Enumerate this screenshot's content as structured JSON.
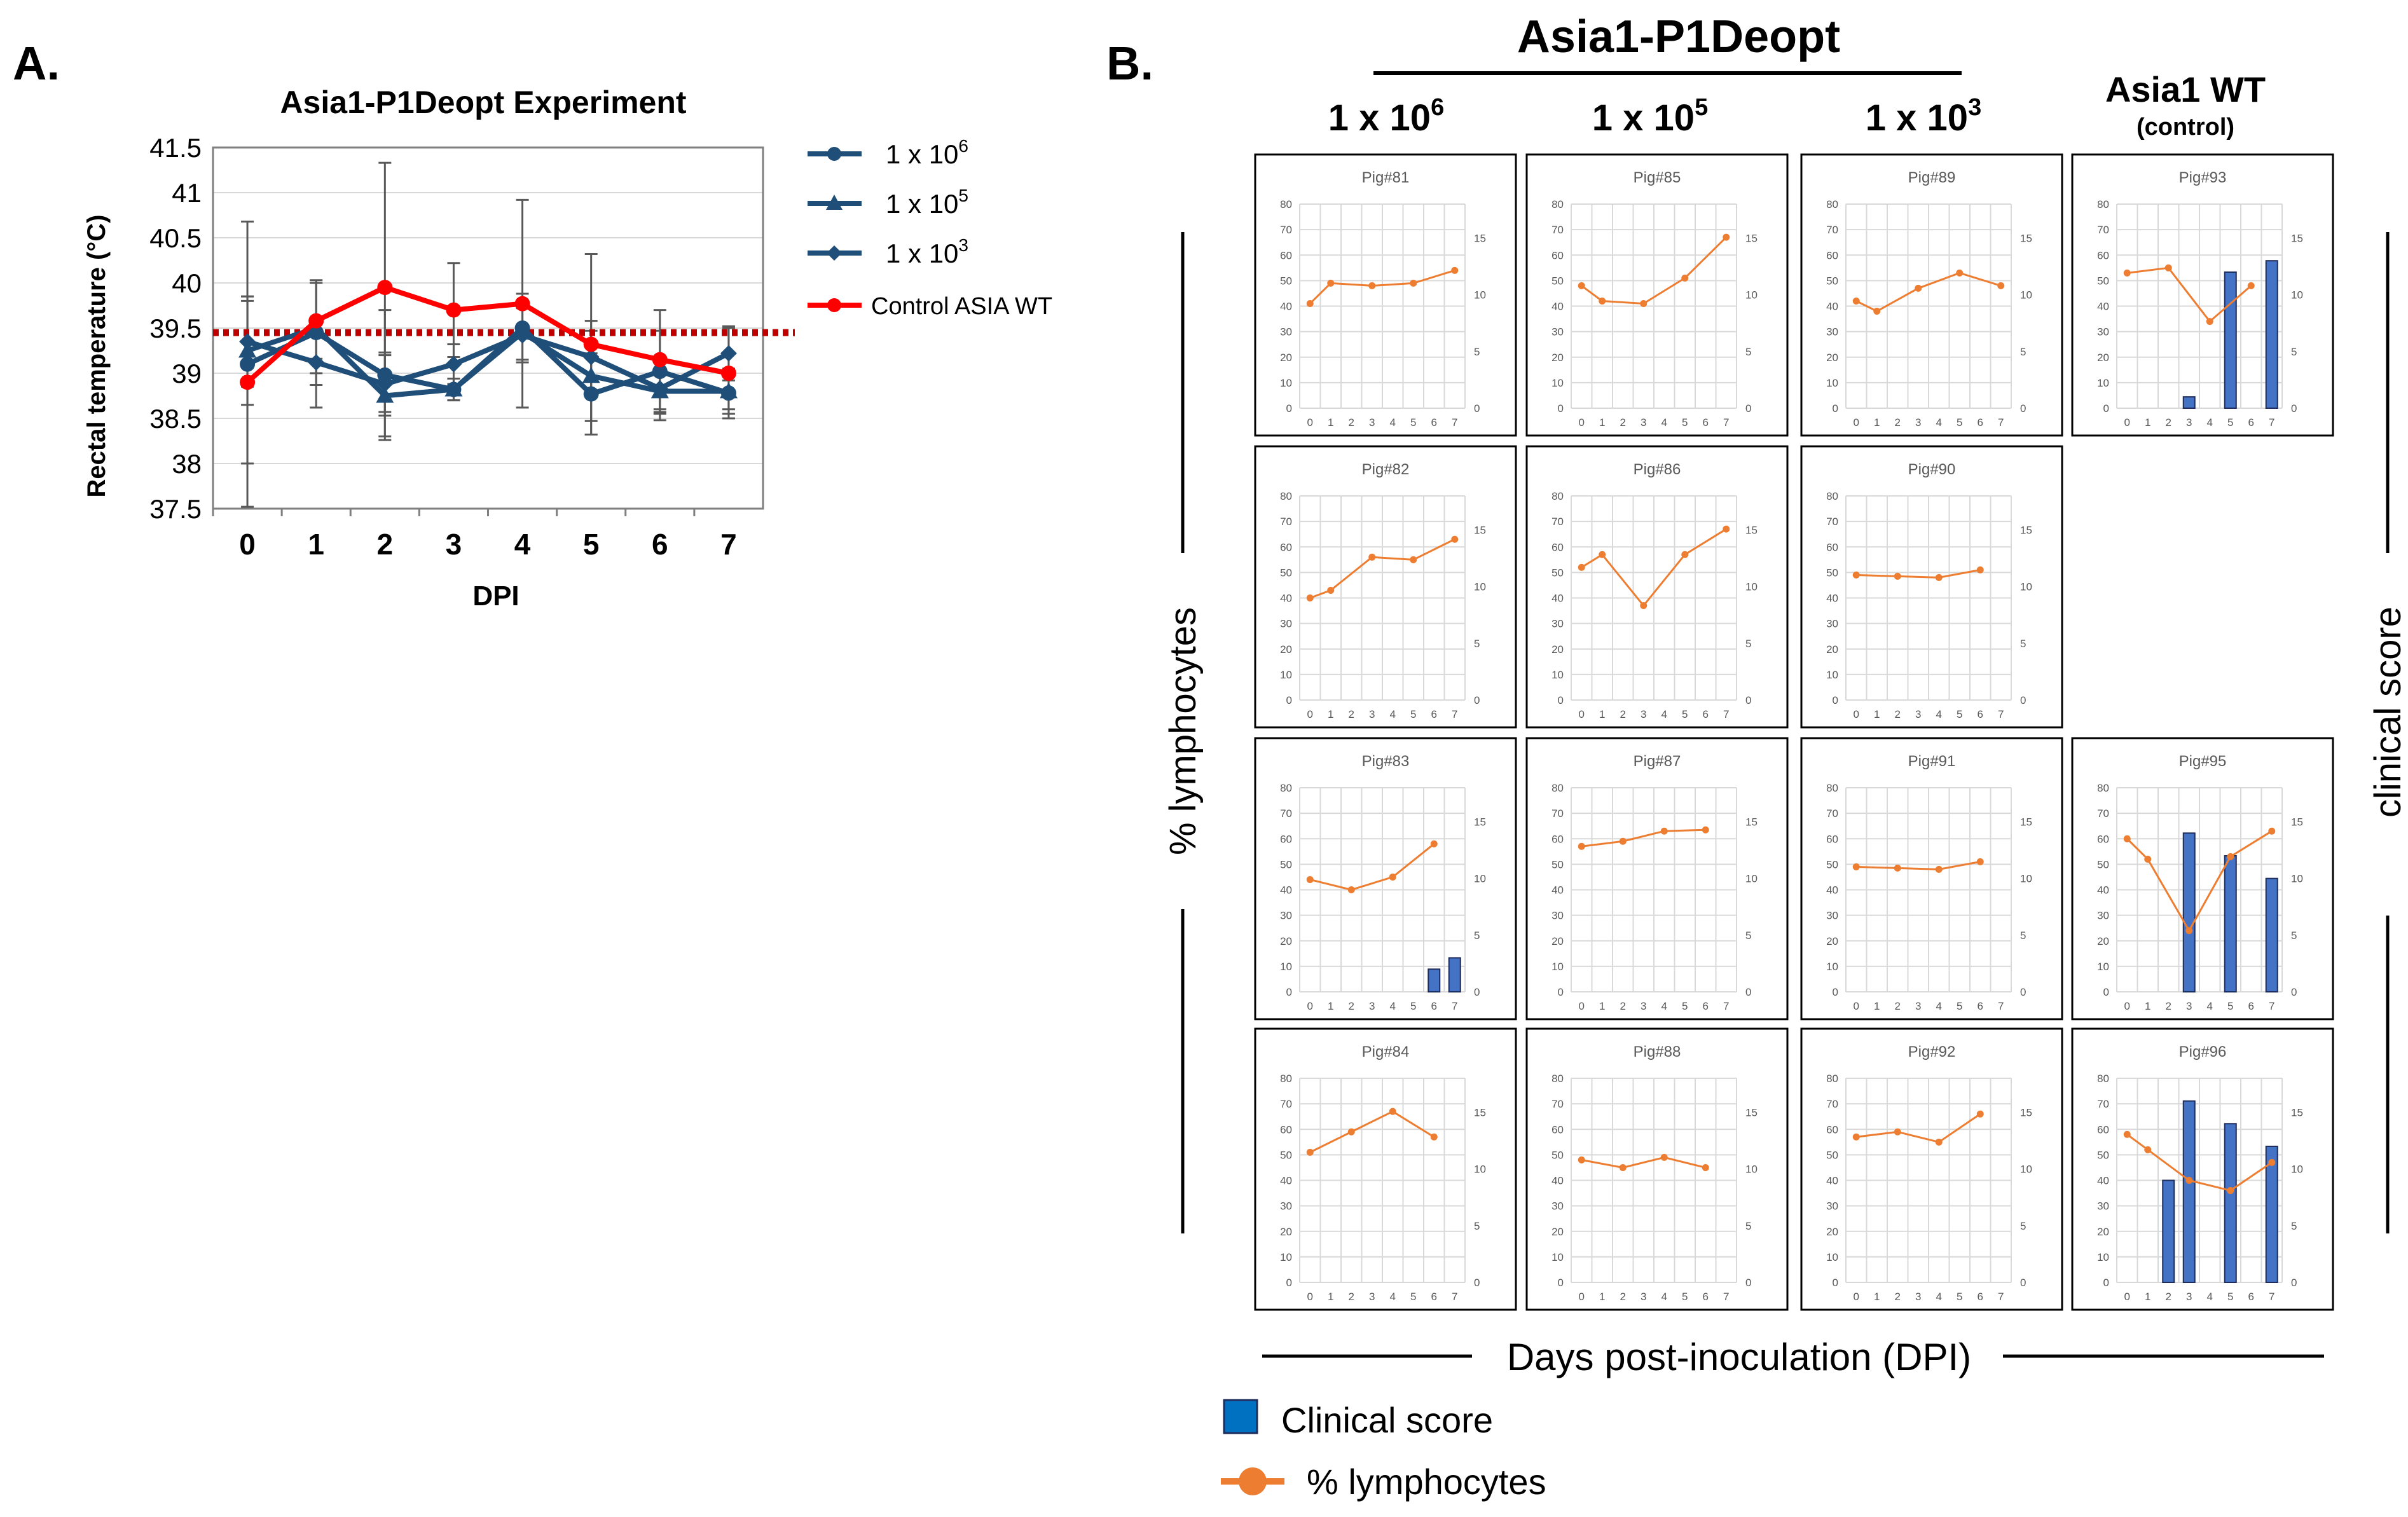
{
  "panel_a": {
    "label": "A.",
    "legend": {
      "e6": {
        "base": "1 x 10",
        "exp": "6"
      },
      "e5": {
        "base": "1 x 10",
        "exp": "5"
      },
      "e3": {
        "base": "1 x 10",
        "exp": "3"
      },
      "control": "Control ASIA WT"
    }
  },
  "panel_b": {
    "label": "B.",
    "group_title": "Asia1-P1Deopt",
    "columns": [
      {
        "base": "1 x 10",
        "exp": "6"
      },
      {
        "base": "1 x 10",
        "exp": "5"
      },
      {
        "base": "1 x 10",
        "exp": "3"
      },
      {
        "title": "Asia1 WT",
        "subtitle": "(control)"
      }
    ],
    "left_axis_label": "% lymphocytes",
    "right_axis_label": "clinical score",
    "bottom_axis_label": "Days post-inoculation (DPI)",
    "legend": {
      "bar": "Clinical score",
      "line": "% lymphocytes"
    }
  },
  "colors": {
    "navy": "#1f4e79",
    "red": "#ff0000",
    "dotted": "#c00000",
    "orange": "#ed7d31",
    "bar": "#4472c4",
    "bar_edge": "#1f2d5c",
    "grid": "#d9d9d9",
    "tick": "#595959"
  },
  "chart_data": [
    {
      "type": "line",
      "title": "Asia1-P1Deopt Experiment",
      "xlabel": "DPI",
      "ylabel": "Rectal temperature (°C)",
      "x": [
        0,
        1,
        2,
        3,
        4,
        5,
        6,
        7
      ],
      "ylim": [
        37.5,
        41.5
      ],
      "yticks": [
        "37.5",
        "38",
        "38.5",
        "39",
        "39.5",
        "40",
        "40.5",
        "41",
        "41.5"
      ],
      "threshold": 39.45,
      "series": [
        {
          "name": "1 x 10^6",
          "marker": "circle",
          "values": [
            39.1,
            39.45,
            38.98,
            38.82,
            39.5,
            38.77,
            39.02,
            38.78
          ],
          "err": [
            1.58,
            0.58,
            0.72,
            0.12,
            0.38,
            0.45,
            0.45,
            0.18
          ]
        },
        {
          "name": "1 x 10^5",
          "marker": "triangle",
          "values": [
            39.25,
            39.5,
            38.75,
            38.82,
            39.45,
            38.97,
            38.8,
            38.8
          ],
          "err": [
            0.6,
            0.5,
            0.45,
            0.12,
            0.3,
            0.5,
            0.25,
            0.25
          ]
        },
        {
          "name": "1 x 10^3",
          "marker": "diamond",
          "values": [
            39.35,
            39.12,
            38.88,
            39.1,
            39.42,
            39.18,
            38.83,
            39.22
          ],
          "err": [
            0.5,
            0.5,
            0.35,
            0.22,
            0.3,
            0.4,
            0.35,
            0.3
          ]
        },
        {
          "name": "Control ASIA WT",
          "marker": "circle",
          "values": [
            38.9,
            39.58,
            39.95,
            39.7,
            39.77,
            39.32,
            39.15,
            39.0
          ],
          "err": [
            0.9,
            0.42,
            1.38,
            0.52,
            1.15,
            1.0,
            0.55,
            0.5
          ]
        }
      ]
    },
    {
      "type": "small-multiples",
      "x": [
        0,
        1,
        2,
        3,
        4,
        5,
        6,
        7
      ],
      "left_ylim": [
        0,
        80
      ],
      "left_ticks": [
        "0",
        "10",
        "20",
        "30",
        "40",
        "50",
        "60",
        "70",
        "80"
      ],
      "right_ylim": [
        0,
        18
      ],
      "right_ticks": [
        "0",
        "5",
        "10",
        "15"
      ],
      "series_types": {
        "lymph": "line",
        "score": "bar"
      },
      "panels": [
        {
          "title": "Pig#81",
          "row": 0,
          "col": 0,
          "lymph": [
            [
              0,
              41
            ],
            [
              1,
              49
            ],
            [
              3,
              48
            ],
            [
              5,
              49
            ],
            [
              7,
              54
            ]
          ],
          "score": []
        },
        {
          "title": "Pig#85",
          "row": 0,
          "col": 1,
          "lymph": [
            [
              0,
              48
            ],
            [
              1,
              42
            ],
            [
              3,
              41
            ],
            [
              5,
              51
            ],
            [
              7,
              67
            ]
          ],
          "score": []
        },
        {
          "title": "Pig#89",
          "row": 0,
          "col": 2,
          "lymph": [
            [
              0,
              42
            ],
            [
              1,
              38
            ],
            [
              3,
              47
            ],
            [
              5,
              53
            ],
            [
              7,
              48
            ]
          ],
          "score": []
        },
        {
          "title": "Pig#93",
          "row": 0,
          "col": 3,
          "lymph": [
            [
              0,
              53
            ],
            [
              2,
              55
            ],
            [
              4,
              34
            ],
            [
              6,
              48
            ]
          ],
          "score": [
            [
              3,
              1
            ],
            [
              5,
              12
            ],
            [
              7,
              13
            ]
          ]
        },
        {
          "title": "Pig#82",
          "row": 1,
          "col": 0,
          "lymph": [
            [
              0,
              40
            ],
            [
              1,
              43
            ],
            [
              3,
              56
            ],
            [
              5,
              55
            ],
            [
              7,
              63
            ]
          ],
          "score": []
        },
        {
          "title": "Pig#86",
          "row": 1,
          "col": 1,
          "lymph": [
            [
              0,
              52
            ],
            [
              1,
              57
            ],
            [
              3,
              37
            ],
            [
              5,
              57
            ],
            [
              7,
              67
            ]
          ],
          "score": []
        },
        {
          "title": "Pig#90",
          "row": 1,
          "col": 2,
          "lymph": [
            [
              0,
              49
            ],
            [
              2,
              48.5
            ],
            [
              4,
              48
            ],
            [
              6,
              51
            ]
          ],
          "score": []
        },
        {
          "title": "Pig#83",
          "row": 2,
          "col": 0,
          "lymph": [
            [
              0,
              44
            ],
            [
              2,
              40
            ],
            [
              4,
              45
            ],
            [
              6,
              58
            ]
          ],
          "score": [
            [
              6,
              2
            ],
            [
              7,
              3
            ]
          ]
        },
        {
          "title": "Pig#87",
          "row": 2,
          "col": 1,
          "lymph": [
            [
              0,
              57
            ],
            [
              2,
              59
            ],
            [
              4,
              63
            ],
            [
              6,
              63.5
            ]
          ],
          "score": []
        },
        {
          "title": "Pig#91",
          "row": 2,
          "col": 2,
          "lymph": [
            [
              0,
              49
            ],
            [
              2,
              48.5
            ],
            [
              4,
              48
            ],
            [
              6,
              51
            ]
          ],
          "score": []
        },
        {
          "title": "Pig#95",
          "row": 2,
          "col": 3,
          "lymph": [
            [
              0,
              60
            ],
            [
              1,
              52
            ],
            [
              3,
              24
            ],
            [
              5,
              53
            ],
            [
              7,
              63
            ]
          ],
          "score": [
            [
              3,
              14
            ],
            [
              5,
              12
            ],
            [
              7,
              10
            ]
          ]
        },
        {
          "title": "Pig#84",
          "row": 3,
          "col": 0,
          "lymph": [
            [
              0,
              51
            ],
            [
              2,
              59
            ],
            [
              4,
              67
            ],
            [
              6,
              57
            ]
          ],
          "score": []
        },
        {
          "title": "Pig#88",
          "row": 3,
          "col": 1,
          "lymph": [
            [
              0,
              48
            ],
            [
              2,
              45
            ],
            [
              4,
              49
            ],
            [
              6,
              45
            ]
          ],
          "score": []
        },
        {
          "title": "Pig#92",
          "row": 3,
          "col": 2,
          "lymph": [
            [
              0,
              57
            ],
            [
              2,
              59
            ],
            [
              4,
              55
            ],
            [
              6,
              66
            ]
          ],
          "score": []
        },
        {
          "title": "Pig#96",
          "row": 3,
          "col": 3,
          "lymph": [
            [
              0,
              58
            ],
            [
              1,
              52
            ],
            [
              3,
              40
            ],
            [
              5,
              36
            ],
            [
              7,
              47
            ]
          ],
          "score": [
            [
              2,
              9
            ],
            [
              3,
              16
            ],
            [
              5,
              14
            ],
            [
              7,
              12
            ]
          ]
        }
      ]
    }
  ]
}
